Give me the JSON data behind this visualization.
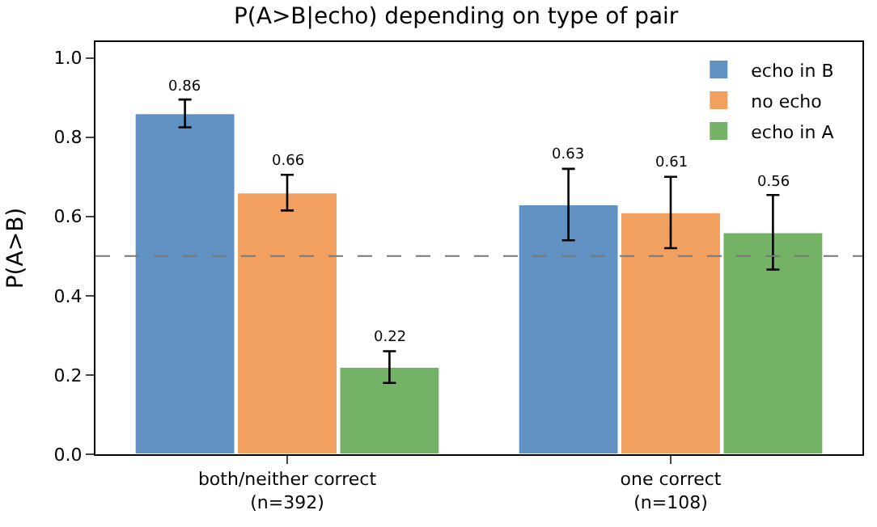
{
  "chart_data": {
    "type": "bar",
    "title": "P(A>B|echo) depending on type of pair",
    "ylabel": "P(A>B)",
    "categories": [
      "both/neither correct\n(n=392)",
      "one correct\n(n=108)"
    ],
    "series": [
      {
        "name": "echo in B",
        "color": "#6190c2",
        "values": [
          0.86,
          0.63
        ],
        "errors": [
          0.035,
          0.09
        ]
      },
      {
        "name": "no echo",
        "color": "#f2a05f",
        "values": [
          0.66,
          0.61
        ],
        "errors": [
          0.045,
          0.09
        ]
      },
      {
        "name": "echo in A",
        "color": "#74b266",
        "values": [
          0.22,
          0.56
        ],
        "errors": [
          0.04,
          0.094
        ]
      }
    ],
    "ylim": [
      0,
      1.04
    ],
    "yticks": [
      {
        "value": 0,
        "label": "0.0"
      },
      {
        "value": 0.2,
        "label": "0.2"
      },
      {
        "value": 0.4,
        "label": "0.4"
      },
      {
        "value": 0.6,
        "label": "0.6"
      },
      {
        "value": 0.8,
        "label": "0.8"
      },
      {
        "value": 1,
        "label": "1.0"
      }
    ],
    "ref_lines": [
      {
        "axis": "y",
        "value": 0.5,
        "color": "#777777",
        "line_style": "dashed"
      }
    ],
    "data_labels": true,
    "legend": "top right"
  }
}
